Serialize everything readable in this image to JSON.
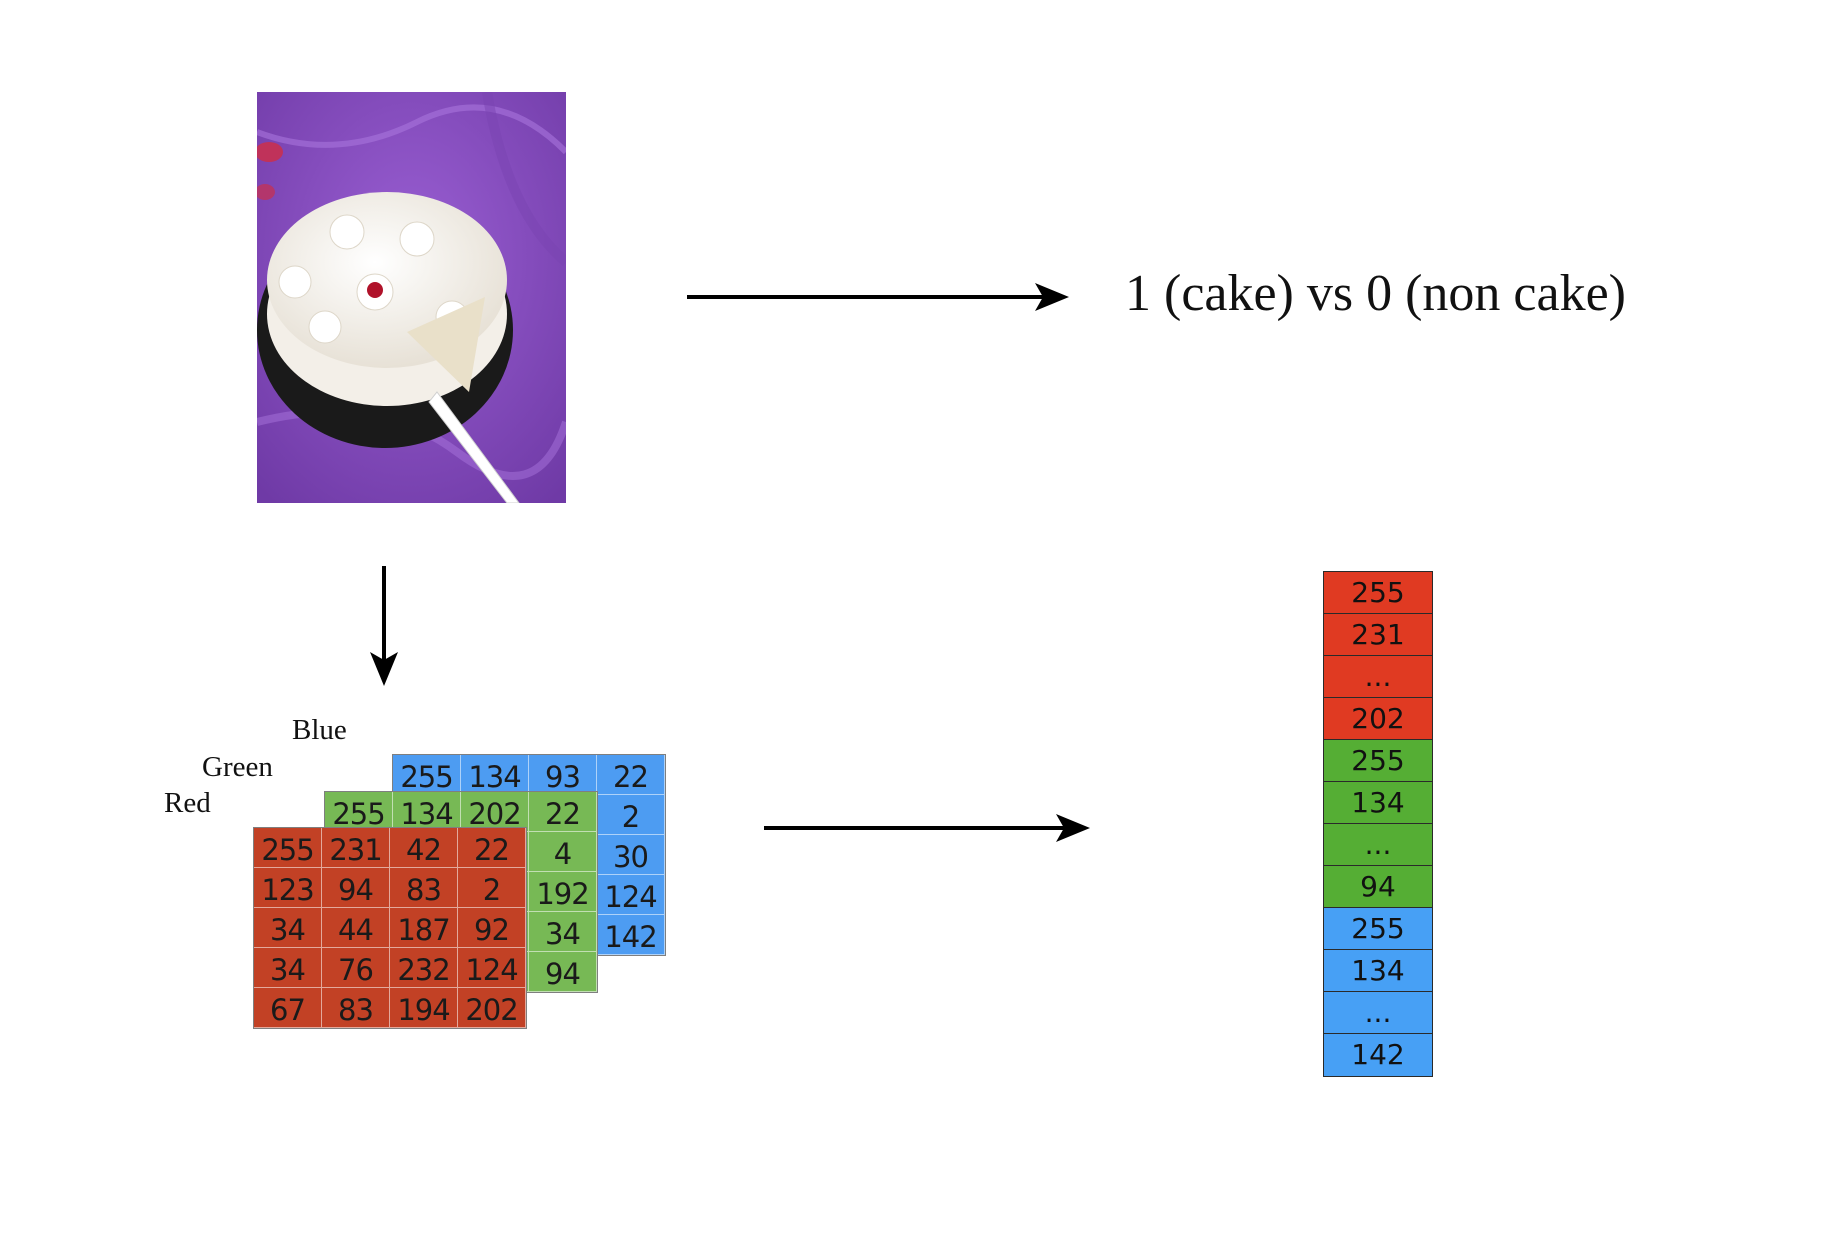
{
  "output_label": "1 (cake) vs 0 (non cake)",
  "channels": {
    "blue": {
      "label": "Blue",
      "color": "#4d9cf2"
    },
    "green": {
      "label": "Green",
      "color": "#77b955"
    },
    "red": {
      "label": "Red",
      "color": "#c24125"
    }
  },
  "red_matrix": [
    [
      "255",
      "231",
      "42",
      "22"
    ],
    [
      "123",
      "94",
      "83",
      "2"
    ],
    [
      "34",
      "44",
      "187",
      "92"
    ],
    [
      "34",
      "76",
      "232",
      "124"
    ],
    [
      "67",
      "83",
      "194",
      "202"
    ]
  ],
  "green_matrix_visible": [
    [
      "255",
      "134",
      "202",
      "22"
    ],
    [
      "",
      "",
      "",
      "4"
    ],
    [
      "",
      "",
      "",
      "192"
    ],
    [
      "",
      "",
      "",
      "34"
    ],
    [
      "",
      "",
      "",
      "94"
    ]
  ],
  "blue_matrix_visible": [
    [
      "255",
      "134",
      "93",
      "22"
    ],
    [
      "",
      "",
      "",
      "2"
    ],
    [
      "",
      "",
      "",
      "30"
    ],
    [
      "",
      "",
      "",
      "124"
    ],
    [
      "",
      "",
      "",
      "142"
    ]
  ],
  "flattened_vector": [
    {
      "value": "255",
      "channel": "red"
    },
    {
      "value": "231",
      "channel": "red"
    },
    {
      "value": "...",
      "channel": "red"
    },
    {
      "value": "202",
      "channel": "red"
    },
    {
      "value": "255",
      "channel": "green"
    },
    {
      "value": "134",
      "channel": "green"
    },
    {
      "value": "...",
      "channel": "green"
    },
    {
      "value": "94",
      "channel": "green"
    },
    {
      "value": "255",
      "channel": "blue"
    },
    {
      "value": "134",
      "channel": "blue"
    },
    {
      "value": "...",
      "channel": "blue"
    },
    {
      "value": "142",
      "channel": "blue"
    }
  ]
}
